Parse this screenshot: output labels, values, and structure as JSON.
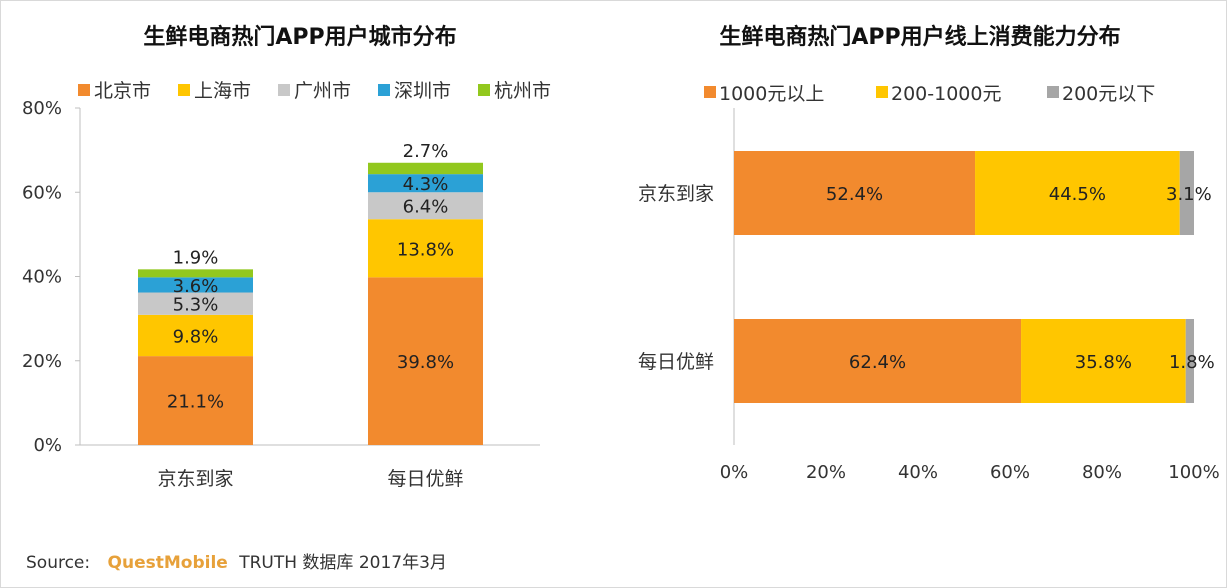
{
  "colors": {
    "beijing": "#f28a2e",
    "shanghai": "#ffc600",
    "guangzhou": "#c8c8c8",
    "shenzhen": "#2ba1d6",
    "hangzhou": "#92c81e",
    "axis": "#bfbfbf",
    "brand": "#e7a13a"
  },
  "chart_data": [
    {
      "type": "bar",
      "stacked": true,
      "orientation": "vertical",
      "title": "生鲜电商热门APP用户城市分布",
      "categories": [
        "京东到家",
        "每日优鲜"
      ],
      "ylim": [
        0,
        80
      ],
      "yticks": [
        "0%",
        "20%",
        "40%",
        "60%",
        "80%"
      ],
      "legend": "top",
      "series": [
        {
          "name": "北京市",
          "color": "#f28a2e",
          "values": [
            21.1,
            39.8
          ],
          "labels": [
            "21.1%",
            "39.8%"
          ]
        },
        {
          "name": "上海市",
          "color": "#ffc600",
          "values": [
            9.8,
            13.8
          ],
          "labels": [
            "9.8%",
            "13.8%"
          ]
        },
        {
          "name": "广州市",
          "color": "#c8c8c8",
          "values": [
            5.3,
            6.4
          ],
          "labels": [
            "5.3%",
            "6.4%"
          ]
        },
        {
          "name": "深圳市",
          "color": "#2ba1d6",
          "values": [
            3.6,
            4.3
          ],
          "labels": [
            "3.6%",
            "4.3%"
          ]
        },
        {
          "name": "杭州市",
          "color": "#92c81e",
          "values": [
            1.9,
            2.7
          ],
          "labels": [
            "1.9%",
            "2.7%"
          ]
        }
      ]
    },
    {
      "type": "bar",
      "stacked": true,
      "orientation": "horizontal",
      "title": "生鲜电商热门APP用户线上消费能力分布",
      "categories": [
        "京东到家",
        "每日优鲜"
      ],
      "xlim": [
        0,
        100
      ],
      "xticks": [
        "0%",
        "20%",
        "40%",
        "60%",
        "80%",
        "100%"
      ],
      "legend": "top",
      "series": [
        {
          "name": "1000元以上",
          "color": "#f28a2e",
          "values": [
            52.4,
            62.4
          ],
          "labels": [
            "52.4%",
            "62.4%"
          ]
        },
        {
          "name": "200-1000元",
          "color": "#ffc600",
          "values": [
            44.5,
            35.8
          ],
          "labels": [
            "44.5%",
            "35.8%"
          ]
        },
        {
          "name": "200元以下",
          "color": "#a6a6a6",
          "values": [
            3.1,
            1.8
          ],
          "labels": [
            "3.1%",
            "1.8%"
          ]
        }
      ]
    }
  ],
  "source": {
    "label": "Source:",
    "brand": "QuestMobile",
    "rest": "TRUTH 数据库 2017年3月"
  }
}
